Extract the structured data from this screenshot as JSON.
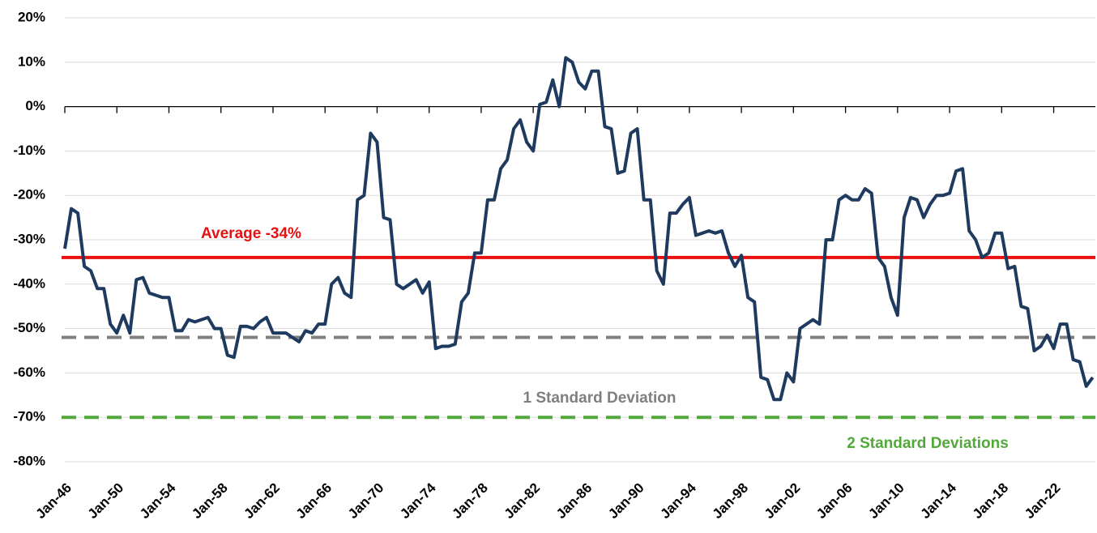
{
  "chart_data": {
    "type": "line",
    "color": "#1f3a5f",
    "categories": [
      "Jan-46",
      null,
      null,
      null,
      null,
      null,
      null,
      null,
      "Jan-50",
      null,
      null,
      null,
      null,
      null,
      null,
      null,
      "Jan-54",
      null,
      null,
      null,
      null,
      null,
      null,
      null,
      "Jan-58",
      null,
      null,
      null,
      null,
      null,
      null,
      null,
      "Jan-62",
      null,
      null,
      null,
      null,
      null,
      null,
      null,
      "Jan-66",
      null,
      null,
      null,
      null,
      null,
      null,
      null,
      "Jan-70",
      null,
      null,
      null,
      null,
      null,
      null,
      null,
      "Jan-74",
      null,
      null,
      null,
      null,
      null,
      null,
      null,
      "Jan-78",
      null,
      null,
      null,
      null,
      null,
      null,
      null,
      "Jan-82",
      null,
      null,
      null,
      null,
      null,
      null,
      null,
      "Jan-86",
      null,
      null,
      null,
      null,
      null,
      null,
      null,
      "Jan-90",
      null,
      null,
      null,
      null,
      null,
      null,
      null,
      "Jan-94",
      null,
      null,
      null,
      null,
      null,
      null,
      null,
      "Jan-98",
      null,
      null,
      null,
      null,
      null,
      null,
      null,
      "Jan-02",
      null,
      null,
      null,
      null,
      null,
      null,
      null,
      "Jan-06",
      null,
      null,
      null,
      null,
      null,
      null,
      null,
      "Jan-10",
      null,
      null,
      null,
      null,
      null,
      null,
      null,
      "Jan-14",
      null,
      null,
      null,
      null,
      null,
      null,
      null,
      "Jan-18",
      null,
      null,
      null,
      null,
      null,
      null,
      null,
      "Jan-22",
      null,
      null,
      null,
      null,
      null,
      null
    ],
    "values": [
      -32,
      -23,
      -24,
      -36,
      -37,
      -41,
      -41,
      -49,
      -51,
      -47,
      -51,
      -39,
      -38.5,
      -42,
      -42.5,
      -43,
      -43,
      -50.5,
      -50.5,
      -48,
      -48.5,
      -48,
      -47.5,
      -50,
      -50,
      -56,
      -56.5,
      -49.5,
      -49.5,
      -50,
      -48.5,
      -47.5,
      -51,
      -51,
      -51,
      -52,
      -53,
      -50.5,
      -51,
      -49,
      -49,
      -40,
      -38.5,
      -42,
      -43,
      -21,
      -20,
      -6,
      -8,
      -25,
      -25.5,
      -40,
      -41,
      -40,
      -39,
      -42,
      -39.5,
      -54.5,
      -54,
      -54,
      -53.5,
      -44,
      -42,
      -33,
      -33,
      -21,
      -21,
      -14,
      -12,
      -5,
      -3,
      -8,
      -10,
      0.5,
      1,
      6,
      0,
      11,
      10,
      5.5,
      4,
      8,
      8,
      -4.5,
      -5,
      -15,
      -14.5,
      -6,
      -5,
      -21,
      -21,
      -37,
      -40,
      -24,
      -24,
      -22,
      -20.5,
      -29,
      -28.5,
      -28,
      -28.5,
      -28,
      -33,
      -36,
      -33.5,
      -43,
      -44,
      -61,
      -61.5,
      -66,
      -66,
      -60,
      -62,
      -50,
      -49,
      -48,
      -49,
      -30,
      -30,
      -21,
      -20,
      -21,
      -21,
      -18.5,
      -19.5,
      -34,
      -36,
      -43,
      -47,
      -25,
      -20.5,
      -21,
      -25,
      -22,
      -20,
      -20,
      -19.5,
      -14.5,
      -14,
      -28,
      -30,
      -34,
      -33,
      -28.5,
      -28.5,
      -36.5,
      -36,
      -45,
      -45.5,
      -55,
      -54,
      -51.5,
      -54.5,
      -49,
      -49,
      -57,
      -57.5,
      -63,
      -61
    ],
    "ylim": [
      -80,
      20
    ],
    "yticks": [
      {
        "value": -80,
        "label": "-80%"
      },
      {
        "value": -70,
        "label": "-70%"
      },
      {
        "value": -60,
        "label": "-60%"
      },
      {
        "value": -50,
        "label": "-50%"
      },
      {
        "value": -40,
        "label": "-40%"
      },
      {
        "value": -30,
        "label": "-30%"
      },
      {
        "value": -20,
        "label": "-20%"
      },
      {
        "value": -10,
        "label": "-10%"
      },
      {
        "value": 0,
        "label": "0%"
      },
      {
        "value": 10,
        "label": "10%"
      },
      {
        "value": 20,
        "label": "20%"
      }
    ],
    "grid": true,
    "reference_lines": [
      {
        "value": -34,
        "label": "Average -34%",
        "color": "#e81010",
        "dashed": false
      },
      {
        "value": -52,
        "label": "1 Standard Deviation",
        "color": "#7f7f7f",
        "dashed": true
      },
      {
        "value": -70,
        "label": "2 Standard Deviations",
        "color": "#52a83a",
        "dashed": true
      }
    ]
  }
}
